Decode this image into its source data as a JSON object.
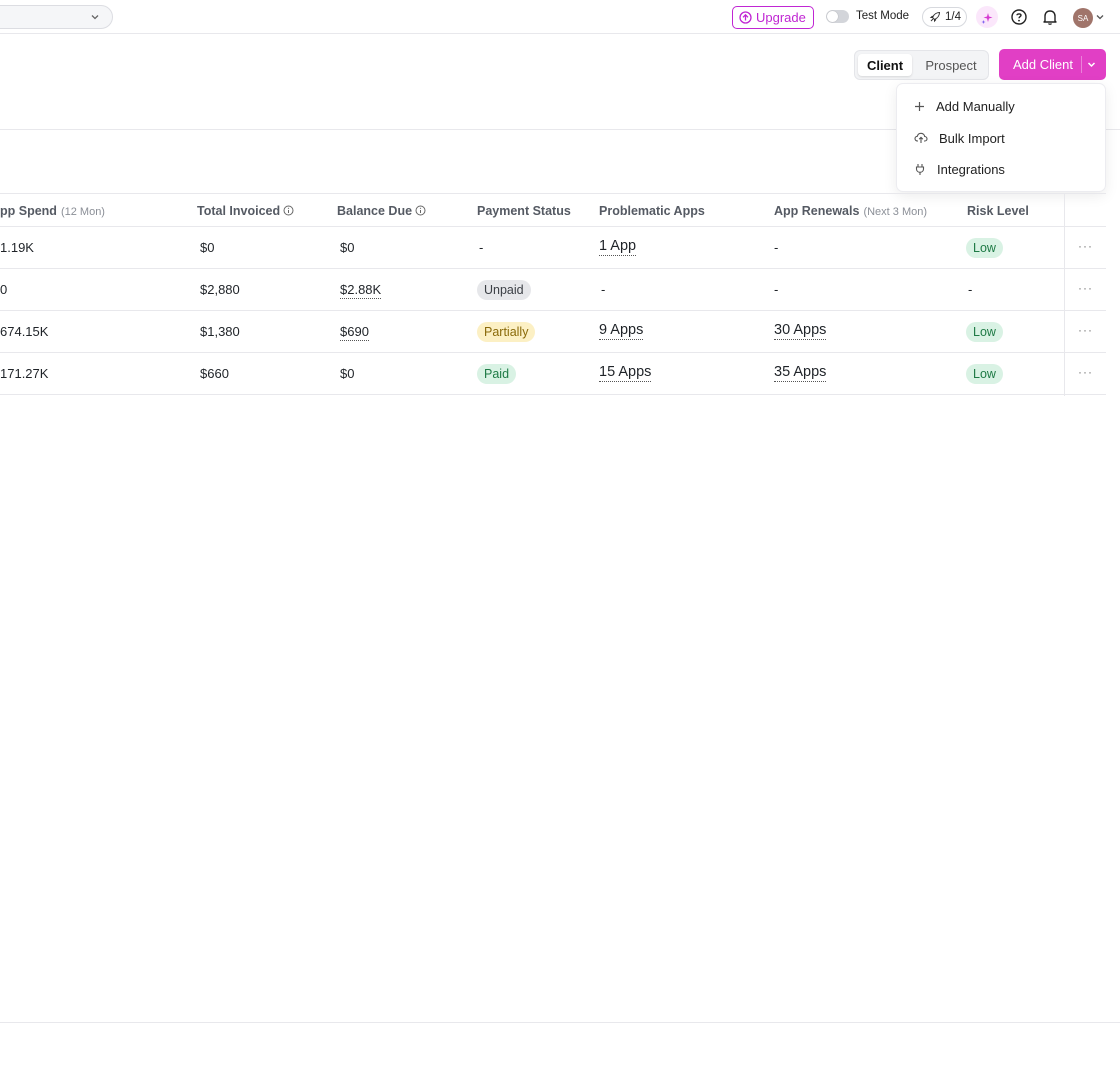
{
  "topbar": {
    "upgrade_label": "Upgrade",
    "test_mode_label": "Test Mode",
    "onboarding_progress": "1/4",
    "avatar_initials": "SA"
  },
  "toolbar": {
    "segment_options": [
      "Client",
      "Prospect"
    ],
    "segment_active": "Client",
    "add_client_label": "Add Client"
  },
  "add_menu": {
    "items": [
      {
        "label": "Add Manually",
        "icon": "plus-icon"
      },
      {
        "label": "Bulk Import",
        "icon": "cloud-upload-icon"
      },
      {
        "label": "Integrations",
        "icon": "plug-icon"
      }
    ]
  },
  "table": {
    "columns": {
      "app_spend": {
        "label": "pp Spend",
        "sub": "(12 Mon)"
      },
      "total_invoiced": {
        "label": "Total Invoiced"
      },
      "balance_due": {
        "label": "Balance Due"
      },
      "payment_status": {
        "label": "Payment Status"
      },
      "problematic_apps": {
        "label": "Problematic Apps"
      },
      "app_renewals": {
        "label": "App Renewals",
        "sub": "(Next 3 Mon)"
      },
      "risk_level": {
        "label": "Risk Level"
      }
    },
    "rows": [
      {
        "app_spend": "1.19K",
        "total_invoiced": "$0",
        "balance_due": "$0",
        "payment_status": "-",
        "problematic_apps": "1 App",
        "app_renewals": "-",
        "risk_level": "Low"
      },
      {
        "app_spend": "0",
        "total_invoiced": "$2,880",
        "balance_due": "$2.88K",
        "payment_status": "Unpaid",
        "problematic_apps": "-",
        "app_renewals": "-",
        "risk_level": "-"
      },
      {
        "app_spend": "674.15K",
        "total_invoiced": "$1,380",
        "balance_due": "$690",
        "payment_status": "Partially",
        "problematic_apps": "9 Apps",
        "app_renewals": "30 Apps",
        "risk_level": "Low"
      },
      {
        "app_spend": "171.27K",
        "total_invoiced": "$660",
        "balance_due": "$0",
        "payment_status": "Paid",
        "problematic_apps": "15 Apps",
        "app_renewals": "35 Apps",
        "risk_level": "Low"
      }
    ],
    "more_label": "···"
  },
  "colors": {
    "accent": "#e13fc5",
    "upgrade": "#c026d3",
    "low_badge": "#d9f2e4",
    "unpaid_badge": "#e6e7ea",
    "partial_badge": "#fcf0c4"
  }
}
